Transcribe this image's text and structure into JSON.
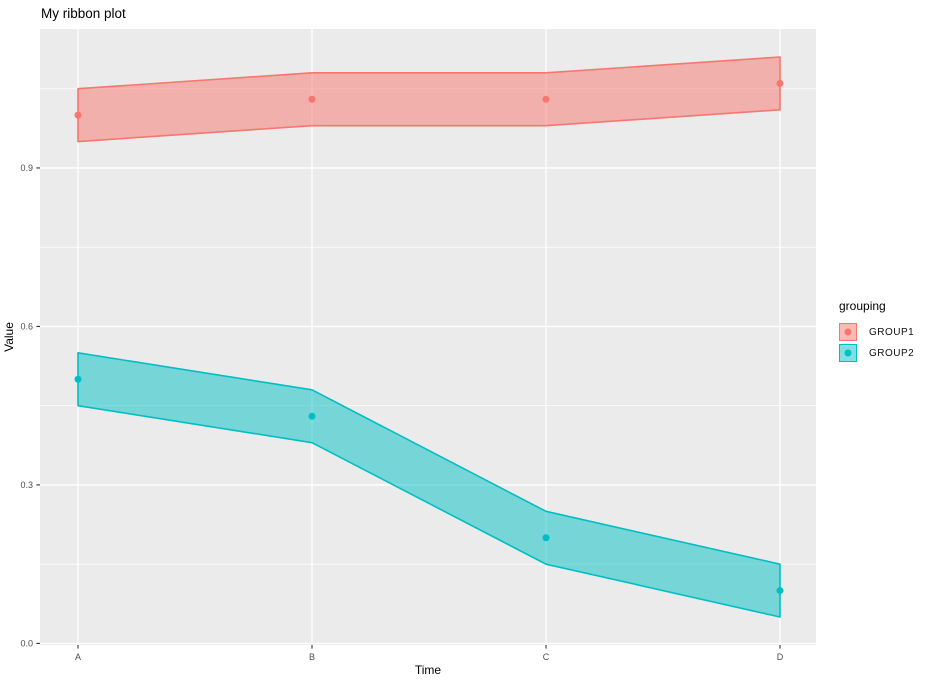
{
  "chart_data": {
    "type": "ribbon",
    "title": "My ribbon plot",
    "xlabel": "Time",
    "ylabel": "Value",
    "legend_title": "grouping",
    "legend_position": "right",
    "categories": [
      "A",
      "B",
      "C",
      "D"
    ],
    "series": [
      {
        "name": "GROUP1",
        "color": "#F8766D",
        "values": [
          1.0,
          1.03,
          1.03,
          1.06
        ],
        "ymin": [
          0.95,
          0.98,
          0.98,
          1.01
        ],
        "ymax": [
          1.05,
          1.08,
          1.08,
          1.11
        ]
      },
      {
        "name": "GROUP2",
        "color": "#00BFC4",
        "values": [
          0.5,
          0.43,
          0.2,
          0.1
        ],
        "ymin": [
          0.45,
          0.38,
          0.15,
          0.05
        ],
        "ymax": [
          0.55,
          0.48,
          0.25,
          0.15
        ]
      }
    ],
    "y_ticks": [
      0.0,
      0.3,
      0.6,
      0.9
    ],
    "y_tick_labels": [
      "0.0",
      "0.3",
      "0.6",
      "0.9"
    ],
    "y_minor_ticks": [
      0.15,
      0.45,
      0.75,
      1.05
    ],
    "ylim": [
      -0.003,
      1.163
    ],
    "grid": true,
    "panel_background": "#EBEBEB",
    "grid_color": "#FFFFFF",
    "tick_color": "#333333",
    "tick_label_color": "#4D4D4D",
    "ribbon_fill_opacity": 0.5
  }
}
